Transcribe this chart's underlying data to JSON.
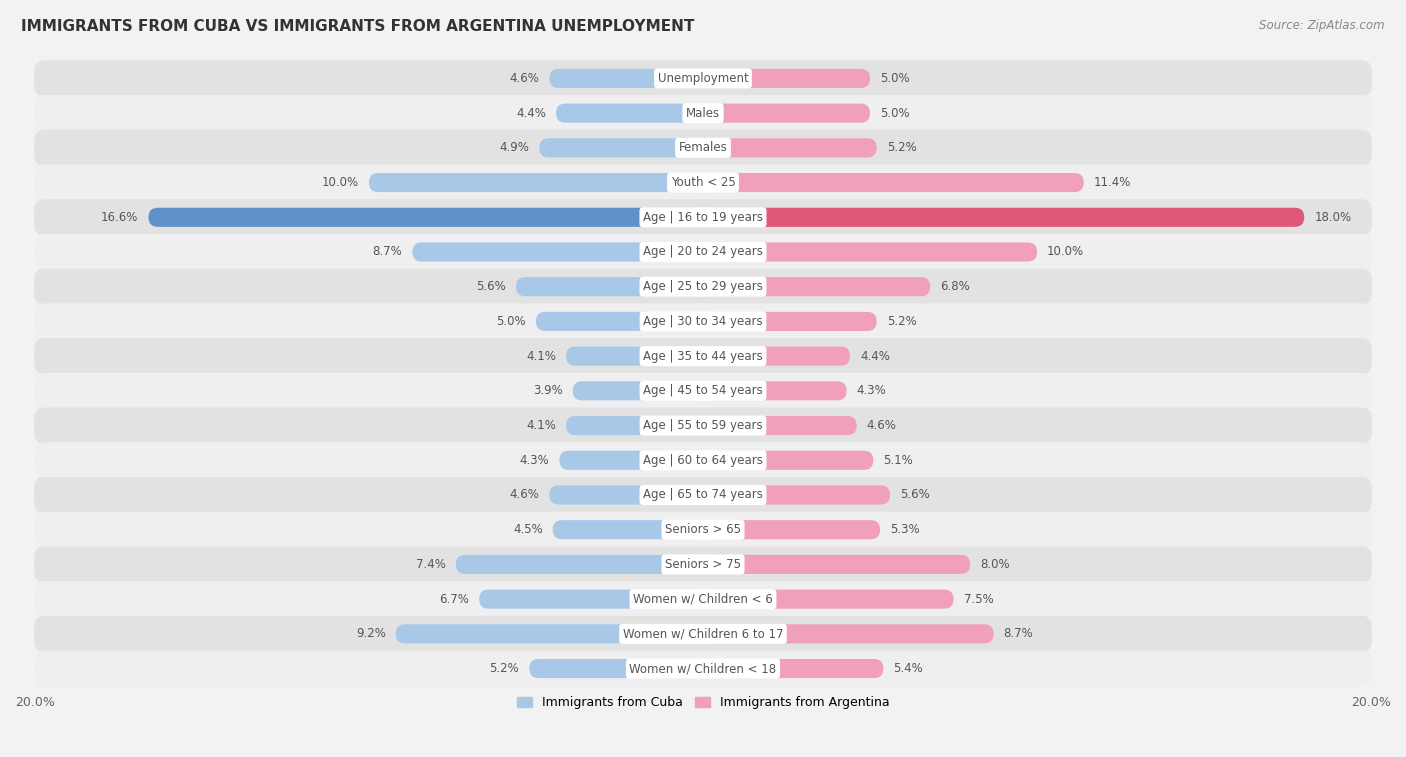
{
  "title": "IMMIGRANTS FROM CUBA VS IMMIGRANTS FROM ARGENTINA UNEMPLOYMENT",
  "source": "Source: ZipAtlas.com",
  "categories": [
    "Unemployment",
    "Males",
    "Females",
    "Youth < 25",
    "Age | 16 to 19 years",
    "Age | 20 to 24 years",
    "Age | 25 to 29 years",
    "Age | 30 to 34 years",
    "Age | 35 to 44 years",
    "Age | 45 to 54 years",
    "Age | 55 to 59 years",
    "Age | 60 to 64 years",
    "Age | 65 to 74 years",
    "Seniors > 65",
    "Seniors > 75",
    "Women w/ Children < 6",
    "Women w/ Children 6 to 17",
    "Women w/ Children < 18"
  ],
  "cuba_values": [
    4.6,
    4.4,
    4.9,
    10.0,
    16.6,
    8.7,
    5.6,
    5.0,
    4.1,
    3.9,
    4.1,
    4.3,
    4.6,
    4.5,
    7.4,
    6.7,
    9.2,
    5.2
  ],
  "argentina_values": [
    5.0,
    5.0,
    5.2,
    11.4,
    18.0,
    10.0,
    6.8,
    5.2,
    4.4,
    4.3,
    4.6,
    5.1,
    5.6,
    5.3,
    8.0,
    7.5,
    8.7,
    5.4
  ],
  "cuba_color": "#a8c8e8",
  "argentina_color": "#f0a0b8",
  "highlight_cuba_color": "#6090c8",
  "highlight_argentina_color": "#e05878",
  "max_val": 20.0,
  "background_color": "#f2f2f2",
  "row_color_dark": "#e2e2e2",
  "row_color_light": "#efefef",
  "label_bg_color": "#ffffff",
  "label_text_color": "#555555",
  "value_text_color": "#555555",
  "legend_cuba": "Immigrants from Cuba",
  "legend_argentina": "Immigrants from Argentina",
  "bar_height": 0.55,
  "font_size_labels": 8.5,
  "font_size_values": 8.5,
  "font_size_title": 11,
  "font_size_source": 8.5,
  "font_size_legend": 9,
  "font_size_axis": 9
}
